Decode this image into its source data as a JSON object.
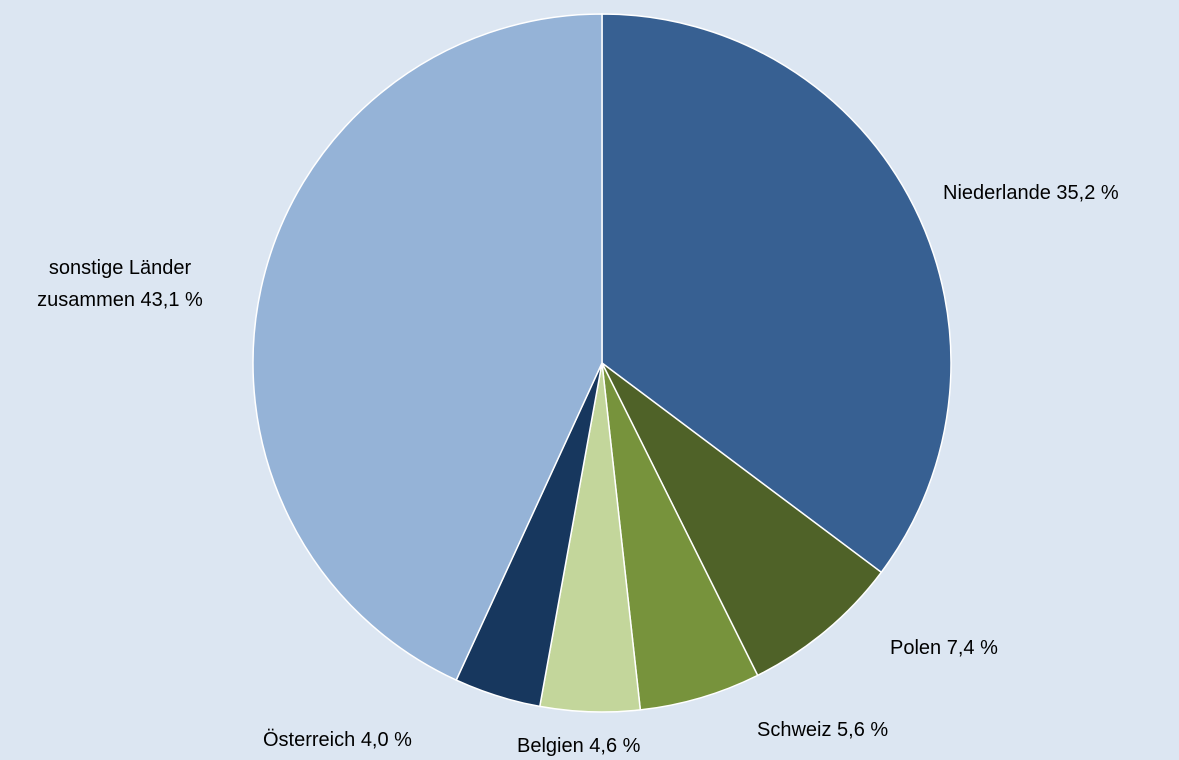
{
  "chart_data": {
    "type": "pie",
    "categories": [
      "Niederlande",
      "Polen",
      "Schweiz",
      "Belgien",
      "Österreich",
      "sonstige Länder zusammen"
    ],
    "values": [
      35.2,
      7.4,
      5.6,
      4.6,
      4.0,
      43.1
    ],
    "value_labels": [
      "35,2 %",
      "7,4 %",
      "5,6 %",
      "4,6 %",
      "4,0 %",
      "43,1 %"
    ],
    "colors": [
      "#376092",
      "#4f6228",
      "#77933c",
      "#c3d69b",
      "#17375e",
      "#95b3d7"
    ]
  }
}
